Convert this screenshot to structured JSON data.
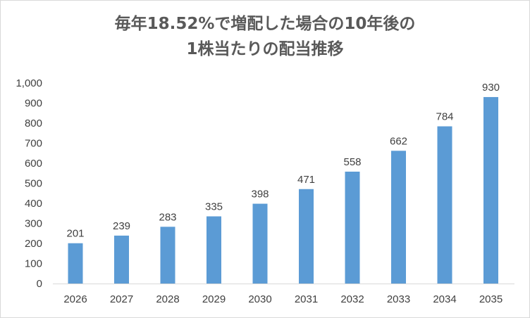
{
  "chart_data": {
    "type": "bar",
    "title_lines": [
      "毎年18.52%で増配した場合の10年後の",
      "1株当たりの配当推移"
    ],
    "categories": [
      "2026",
      "2027",
      "2028",
      "2029",
      "2030",
      "2031",
      "2032",
      "2033",
      "2034",
      "2035"
    ],
    "values": [
      201,
      239,
      283,
      335,
      398,
      471,
      558,
      662,
      784,
      930
    ],
    "data_labels": [
      "201",
      "239",
      "283",
      "335",
      "398",
      "471",
      "558",
      "662",
      "784",
      "930"
    ],
    "xlabel": "",
    "ylabel": "",
    "ylim": [
      0,
      1000
    ],
    "yticks": [
      0,
      100,
      200,
      300,
      400,
      500,
      600,
      700,
      800,
      900,
      1000
    ],
    "ytick_labels": [
      "0",
      "100",
      "200",
      "300",
      "400",
      "500",
      "600",
      "700",
      "800",
      "900",
      "1,000"
    ],
    "grid": false,
    "legend": "none",
    "bar_color": "#5b9bd5"
  }
}
